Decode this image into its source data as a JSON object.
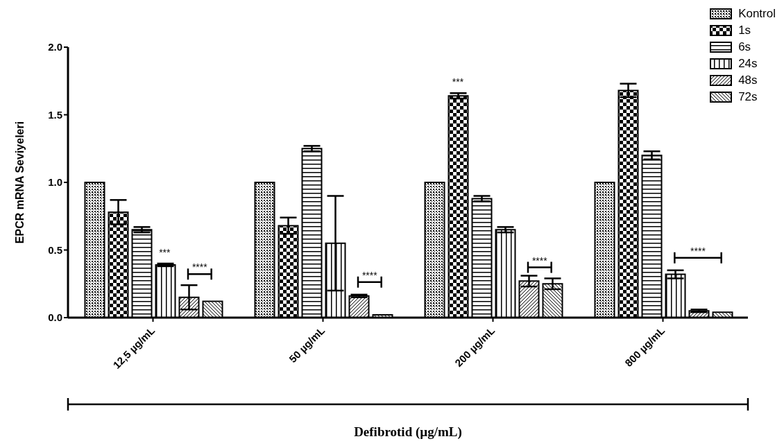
{
  "chart_data": {
    "type": "bar",
    "ylabel": "EPCR mRNA Seviyeleri",
    "xlabel": "Defibrotid (µg/mL)",
    "categories": [
      "12,5 µg/mL",
      "50 µg/mL",
      "200 µg/mL",
      "800 µg/mL"
    ],
    "series": [
      {
        "name": "Kontrol",
        "color": "#000000",
        "values": [
          1.0,
          1.0,
          1.0,
          1.0
        ]
      },
      {
        "name": "1s",
        "color": "#000000",
        "values": [
          0.78,
          0.68,
          1.64,
          1.68
        ],
        "errors": [
          0.09,
          0.06,
          0.02,
          0.05
        ]
      },
      {
        "name": "6s",
        "color": "#000000",
        "values": [
          0.65,
          1.25,
          0.88,
          1.2
        ],
        "errors": [
          0.02,
          0.02,
          0.02,
          0.03
        ]
      },
      {
        "name": "24s",
        "color": "#000000",
        "values": [
          0.39,
          0.55,
          0.65,
          0.32
        ],
        "errors": [
          0.01,
          0.35,
          0.02,
          0.03
        ]
      },
      {
        "name": "48s",
        "color": "#000000",
        "values": [
          0.15,
          0.16,
          0.27,
          0.05
        ],
        "errors": [
          0.09,
          0.01,
          0.04,
          0.01
        ]
      },
      {
        "name": "72s",
        "color": "#000000",
        "values": [
          0.12,
          0.02,
          0.25,
          0.04
        ],
        "errors": [
          null,
          null,
          0.04,
          null
        ]
      }
    ],
    "ylim": [
      0,
      2.0
    ],
    "yticks": [
      {
        "value": 0,
        "label": "0.0"
      },
      {
        "value": 0.5,
        "label": "0.5"
      },
      {
        "value": 1,
        "label": "1.0"
      },
      {
        "value": 1.5,
        "label": "1.5"
      },
      {
        "value": 2,
        "label": "2.0"
      }
    ],
    "legend": "top right",
    "annotations": [
      "***",
      "****",
      "****",
      "***",
      "****",
      "****"
    ]
  }
}
